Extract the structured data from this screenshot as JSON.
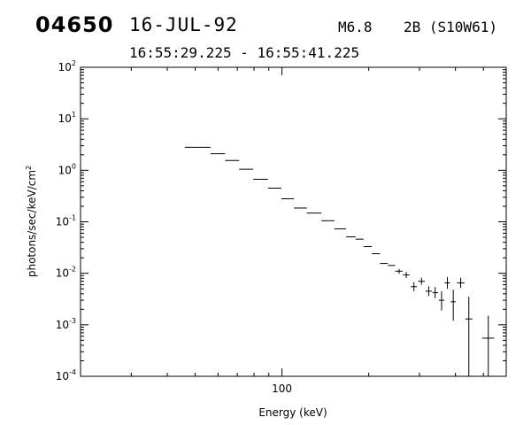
{
  "header": {
    "burst_id": "04650",
    "date": "16-JUL-92",
    "flare_class": "M6.8",
    "optical": "2B (S10W61)",
    "time_range": "16:55:29.225 - 16:55:41.225"
  },
  "chart_data": {
    "type": "scatter",
    "title": "",
    "xlabel": "Energy (keV)",
    "ylabel": "photons/sec/keV/cm",
    "ylabel_superscript": "2",
    "x_scale": "log",
    "y_scale": "log",
    "xlim": [
      20,
      600
    ],
    "ylim": [
      0.0001,
      100
    ],
    "x_tick_labels": [
      "100"
    ],
    "y_tick_labels": [
      {
        "base": "10",
        "exp": "2"
      },
      {
        "base": "10",
        "exp": "1"
      },
      {
        "base": "10",
        "exp": "0"
      },
      {
        "base": "10",
        "exp": "-1"
      },
      {
        "base": "10",
        "exp": "-2"
      },
      {
        "base": "10",
        "exp": "-3"
      },
      {
        "base": "10",
        "exp": "-4"
      }
    ],
    "grid": false,
    "series": [
      {
        "points": [
          {
            "x": 51,
            "x_lo": 46,
            "x_hi": 56.5,
            "y": 2.8,
            "y_lo": 2.8,
            "y_hi": 2.8
          },
          {
            "x": 59.5,
            "x_lo": 56.5,
            "x_hi": 63.5,
            "y": 2.1,
            "y_lo": 2.1,
            "y_hi": 2.1
          },
          {
            "x": 67,
            "x_lo": 63.5,
            "x_hi": 71,
            "y": 1.55,
            "y_lo": 1.55,
            "y_hi": 1.55
          },
          {
            "x": 75,
            "x_lo": 71,
            "x_hi": 79.5,
            "y": 1.05,
            "y_lo": 1.05,
            "y_hi": 1.05
          },
          {
            "x": 84,
            "x_lo": 79.5,
            "x_hi": 89.5,
            "y": 0.67,
            "y_lo": 0.67,
            "y_hi": 0.67
          },
          {
            "x": 94,
            "x_lo": 89.5,
            "x_hi": 99.5,
            "y": 0.45,
            "y_lo": 0.45,
            "y_hi": 0.45
          },
          {
            "x": 104.5,
            "x_lo": 99.5,
            "x_hi": 110,
            "y": 0.28,
            "y_lo": 0.28,
            "y_hi": 0.28
          },
          {
            "x": 116,
            "x_lo": 110,
            "x_hi": 122,
            "y": 0.185,
            "y_lo": 0.185,
            "y_hi": 0.185
          },
          {
            "x": 129,
            "x_lo": 122,
            "x_hi": 137,
            "y": 0.148,
            "y_lo": 0.148,
            "y_hi": 0.148
          },
          {
            "x": 144,
            "x_lo": 137,
            "x_hi": 152,
            "y": 0.105,
            "y_lo": 0.105,
            "y_hi": 0.105
          },
          {
            "x": 159,
            "x_lo": 152,
            "x_hi": 167,
            "y": 0.073,
            "y_lo": 0.073,
            "y_hi": 0.073
          },
          {
            "x": 173,
            "x_lo": 167,
            "x_hi": 180,
            "y": 0.051,
            "y_lo": 0.051,
            "y_hi": 0.051
          },
          {
            "x": 186,
            "x_lo": 180,
            "x_hi": 192,
            "y": 0.046,
            "y_lo": 0.046,
            "y_hi": 0.046
          },
          {
            "x": 198,
            "x_lo": 192,
            "x_hi": 205,
            "y": 0.033,
            "y_lo": 0.033,
            "y_hi": 0.033
          },
          {
            "x": 212,
            "x_lo": 205,
            "x_hi": 219,
            "y": 0.024,
            "y_lo": 0.024,
            "y_hi": 0.024
          },
          {
            "x": 226,
            "x_lo": 219,
            "x_hi": 233,
            "y": 0.0155,
            "y_lo": 0.0155,
            "y_hi": 0.0155
          },
          {
            "x": 240,
            "x_lo": 233,
            "x_hi": 247,
            "y": 0.0142,
            "y_lo": 0.0142,
            "y_hi": 0.0142
          },
          {
            "x": 255,
            "x_lo": 247,
            "x_hi": 262,
            "y": 0.011,
            "y_lo": 0.0098,
            "y_hi": 0.0122
          },
          {
            "x": 270,
            "x_lo": 263,
            "x_hi": 277,
            "y": 0.0093,
            "y_lo": 0.0081,
            "y_hi": 0.0106
          },
          {
            "x": 287,
            "x_lo": 280,
            "x_hi": 294,
            "y": 0.0055,
            "y_lo": 0.0045,
            "y_hi": 0.0067
          },
          {
            "x": 305,
            "x_lo": 297,
            "x_hi": 313,
            "y": 0.007,
            "y_lo": 0.006,
            "y_hi": 0.0082
          },
          {
            "x": 323,
            "x_lo": 315,
            "x_hi": 331,
            "y": 0.0045,
            "y_lo": 0.0036,
            "y_hi": 0.0056
          },
          {
            "x": 340,
            "x_lo": 333,
            "x_hi": 348,
            "y": 0.0042,
            "y_lo": 0.0033,
            "y_hi": 0.0054
          },
          {
            "x": 358,
            "x_lo": 350,
            "x_hi": 366,
            "y": 0.003,
            "y_lo": 0.0019,
            "y_hi": 0.0045
          },
          {
            "x": 375,
            "x_lo": 367,
            "x_hi": 383,
            "y": 0.0065,
            "y_lo": 0.005,
            "y_hi": 0.0085
          },
          {
            "x": 393,
            "x_lo": 385,
            "x_hi": 401,
            "y": 0.0028,
            "y_lo": 0.0012,
            "y_hi": 0.0048
          },
          {
            "x": 417,
            "x_lo": 405,
            "x_hi": 430,
            "y": 0.0065,
            "y_lo": 0.0052,
            "y_hi": 0.0082
          },
          {
            "x": 445,
            "x_lo": 433,
            "x_hi": 458,
            "y": 0.0013,
            "y_lo": 0.0001,
            "y_hi": 0.0035
          },
          {
            "x": 520,
            "x_lo": 495,
            "x_hi": 545,
            "y": 0.00055,
            "y_lo": 0.0001,
            "y_hi": 0.0015
          }
        ]
      }
    ]
  }
}
